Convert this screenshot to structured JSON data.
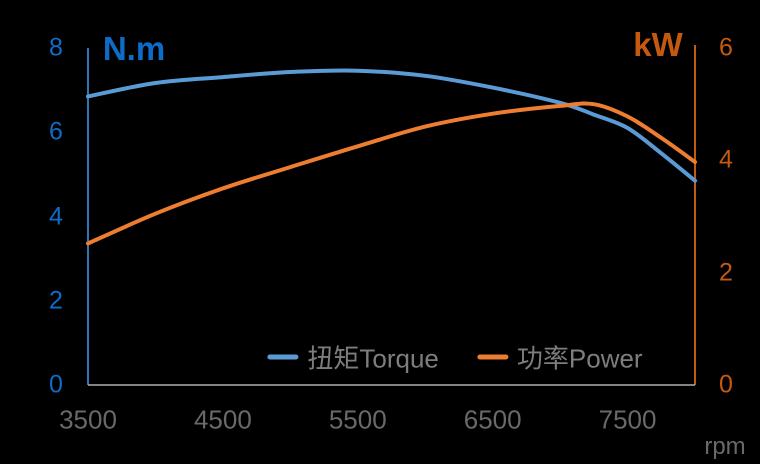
{
  "chart_data": {
    "type": "line",
    "x": [
      3500,
      4000,
      4500,
      5000,
      5500,
      6000,
      6500,
      7000,
      7250,
      7500,
      7750,
      8000
    ],
    "x_range": [
      3500,
      8000
    ],
    "x_ticks": [
      3500,
      4500,
      5500,
      6500,
      7500
    ],
    "xlabel": "rpm",
    "series": [
      {
        "name": "扭矩Torque",
        "axis": "left",
        "color": "#5B9BD5",
        "values": [
          6.85,
          7.17,
          7.31,
          7.43,
          7.46,
          7.34,
          7.06,
          6.7,
          6.42,
          6.1,
          5.5,
          4.85
        ]
      },
      {
        "name": "功率Power",
        "axis": "right",
        "color": "#ED7D31",
        "values": [
          2.52,
          3.05,
          3.5,
          3.88,
          4.25,
          4.6,
          4.83,
          4.97,
          5.0,
          4.78,
          4.4,
          3.97
        ]
      }
    ],
    "left_axis": {
      "title": "N.m",
      "ticks": [
        0,
        2,
        4,
        6,
        8
      ],
      "range": [
        0,
        8
      ],
      "label_color": "#0d6cc7",
      "line_color": "#2e75b6"
    },
    "right_axis": {
      "title": "kW",
      "ticks": [
        0,
        2,
        4,
        6
      ],
      "range": [
        0,
        6
      ],
      "label_color": "#c4590f",
      "line_color": "#c55a11"
    },
    "colors": {
      "background": "#000000",
      "x_label": "#696969",
      "x_axis_line": "#b0b0b0",
      "legend_text": "#7d7d7d"
    },
    "grid": "off",
    "legend_position": "bottom-center-inside"
  }
}
